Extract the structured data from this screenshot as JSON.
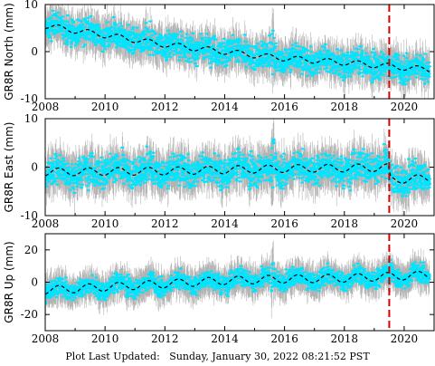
{
  "footer": {
    "label": "Plot Last Updated:",
    "timestamp": "Sunday, January 30, 2022 08:21:52 PST"
  },
  "colors": {
    "errorbar": "#b3b3b3",
    "points": "#00e5ff",
    "model": "#000000",
    "event_line": "#dd0000"
  },
  "chart_data": [
    {
      "type": "scatter",
      "ylabel": "GR8R North (mm)",
      "xlim": [
        2008,
        2021
      ],
      "ylim": [
        -10,
        10
      ],
      "xticks": [
        2008,
        2010,
        2012,
        2014,
        2016,
        2018,
        2020
      ],
      "yticks": [
        -10,
        0,
        10
      ],
      "event_x": 2019.5,
      "model_trend": [
        [
          2008.0,
          5.5
        ],
        [
          2010.0,
          3.5
        ],
        [
          2012.0,
          1.5
        ],
        [
          2014.0,
          0.0
        ],
        [
          2015.6,
          -1.2
        ],
        [
          2017.3,
          -2.0
        ],
        [
          2018.0,
          -2.3
        ],
        [
          2020.8,
          -3.8
        ]
      ],
      "seasonal_amp": 0.6,
      "scatter": 2.0,
      "error": 2.8,
      "spike_x": 2015.6
    },
    {
      "type": "scatter",
      "ylabel": "GR8R East (mm)",
      "xlim": [
        2008,
        2021
      ],
      "ylim": [
        -10,
        10
      ],
      "xticks": [
        2008,
        2010,
        2012,
        2014,
        2016,
        2018,
        2020
      ],
      "yticks": [
        -10,
        0,
        10
      ],
      "event_x": 2019.5,
      "model_trend": [
        [
          2008.0,
          -1.0
        ],
        [
          2012.0,
          -0.8
        ],
        [
          2016.0,
          -0.3
        ],
        [
          2019.45,
          -0.1
        ],
        [
          2019.55,
          -2.6
        ],
        [
          2020.8,
          -2.3
        ]
      ],
      "seasonal_amp": 0.8,
      "scatter": 2.2,
      "error": 3.0,
      "spike_x": 2015.6
    },
    {
      "type": "scatter",
      "ylabel": "GR8R Up (mm)",
      "xlim": [
        2008,
        2021
      ],
      "ylim": [
        -30,
        30
      ],
      "xticks": [
        2008,
        2010,
        2012,
        2014,
        2016,
        2018,
        2020
      ],
      "yticks": [
        -20,
        0,
        20
      ],
      "event_x": 2019.5,
      "model_trend": [
        [
          2008.0,
          -5.0
        ],
        [
          2012.0,
          -1.0
        ],
        [
          2014.0,
          1.0
        ],
        [
          2016.0,
          2.0
        ],
        [
          2018.0,
          2.5
        ],
        [
          2020.8,
          4.5
        ]
      ],
      "seasonal_amp": 2.5,
      "scatter": 4.0,
      "error": 7.0,
      "spike_x": 2015.6
    }
  ]
}
